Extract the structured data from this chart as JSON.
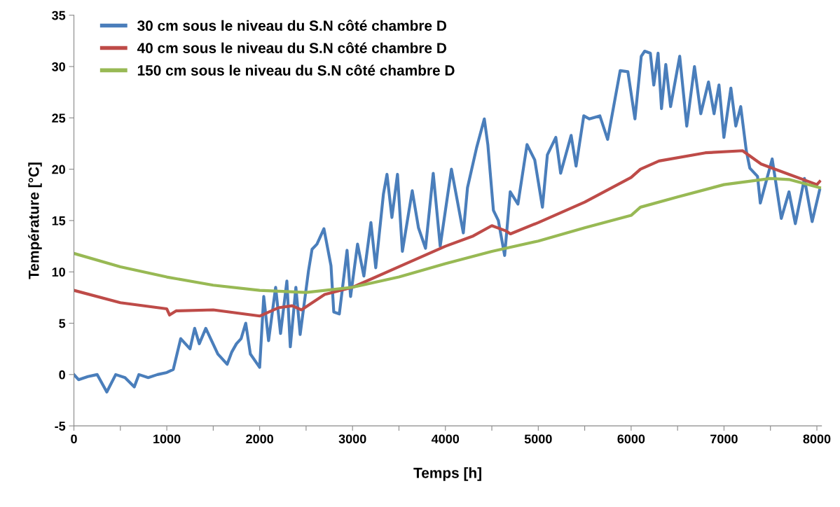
{
  "chart_data": {
    "type": "line",
    "xlabel": "Temps [h]",
    "ylabel": "Température [°C]",
    "xlim": [
      0,
      8050
    ],
    "ylim": [
      -5,
      35
    ],
    "xticks": [
      0,
      {
        "value": 500,
        "label": null
      },
      1000,
      {
        "value": 1500,
        "label": null
      },
      2000,
      {
        "value": 2500,
        "label": null
      },
      3000,
      {
        "value": 3500,
        "label": null
      },
      4000,
      {
        "value": 4500,
        "label": null
      },
      5000,
      {
        "value": 5500,
        "label": null
      },
      6000,
      {
        "value": 6500,
        "label": null
      },
      7000,
      {
        "value": 7500,
        "label": null
      },
      8000
    ],
    "yticks": [
      -5,
      0,
      5,
      10,
      15,
      20,
      25,
      30,
      35
    ],
    "grid": false,
    "legend": "top left",
    "marker": "none",
    "line_style": "solid",
    "series": [
      {
        "name": "30 cm sous le niveau du S.N côté chambre D",
        "color": "#4a7ebb",
        "x": [
          0,
          50,
          150,
          250,
          354,
          450,
          550,
          650,
          700,
          800,
          900,
          1000,
          1070,
          1150,
          1250,
          1300,
          1350,
          1420,
          1550,
          1650,
          1700,
          1750,
          1800,
          1850,
          1900,
          2000,
          2044,
          2096,
          2172,
          2225,
          2293,
          2330,
          2390,
          2436,
          2526,
          2564,
          2617,
          2692,
          2768,
          2798,
          2858,
          2941,
          2979,
          3054,
          3122,
          3198,
          3250,
          3333,
          3371,
          3424,
          3484,
          3537,
          3643,
          3710,
          3786,
          3869,
          3944,
          4065,
          4193,
          4238,
          4336,
          4419,
          4457,
          4517,
          4570,
          4638,
          4698,
          4781,
          4879,
          4962,
          5045,
          5098,
          5189,
          5241,
          5354,
          5407,
          5490,
          5551,
          5663,
          5747,
          5882,
          5965,
          6041,
          6109,
          6146,
          6207,
          6244,
          6290,
          6327,
          6373,
          6425,
          6523,
          6599,
          6682,
          6750,
          6833,
          6893,
          6946,
          6999,
          7074,
          7127,
          7180,
          7240,
          7278,
          7361,
          7391,
          7519,
          7617,
          7700,
          7768,
          7866,
          7949,
          8030
        ],
        "values": [
          0,
          -0.5,
          -0.2,
          0,
          -1.7,
          0,
          -0.3,
          -1.2,
          0,
          -0.3,
          0,
          0.2,
          0.5,
          3.5,
          2.5,
          4.5,
          3,
          4.5,
          2,
          1,
          2.2,
          3,
          3.5,
          5,
          2,
          0.7,
          7.6,
          3.3,
          8.5,
          4,
          9.1,
          2.7,
          8.5,
          3.9,
          10.1,
          12.2,
          12.7,
          14.2,
          10.6,
          6.1,
          5.9,
          12.1,
          7.6,
          12.7,
          9.6,
          14.8,
          10.4,
          17.6,
          19.5,
          15.3,
          19.5,
          12,
          17.9,
          14.3,
          12.3,
          19.6,
          12.5,
          20,
          13.8,
          18.2,
          22.1,
          24.9,
          22.4,
          16,
          15,
          11.6,
          17.8,
          16.6,
          22.4,
          20.9,
          16.3,
          21.4,
          23.1,
          19.6,
          23.3,
          20.3,
          25.2,
          24.9,
          25.2,
          22.9,
          29.6,
          29.5,
          24.9,
          31,
          31.5,
          31.3,
          28.2,
          31.3,
          25.9,
          30.2,
          26.1,
          31,
          24.2,
          30,
          25.4,
          28.5,
          25.4,
          28.2,
          23.1,
          27.9,
          24.2,
          26.1,
          21.8,
          20.1,
          19.3,
          16.7,
          21,
          15.2,
          17.8,
          14.7,
          19.1,
          14.9,
          18
        ]
      },
      {
        "name": "40 cm sous le niveau du S.N côté chambre D",
        "color": "#be4b48",
        "x": [
          0,
          500,
          1000,
          1030,
          1100,
          1500,
          2000,
          2200,
          2350,
          2450,
          2700,
          3000,
          3500,
          4000,
          4300,
          4500,
          4650,
          4700,
          5000,
          5500,
          6000,
          6100,
          6300,
          6800,
          7200,
          7400,
          7700,
          8000,
          8030
        ],
        "values": [
          8.2,
          7,
          6.4,
          5.8,
          6.2,
          6.3,
          5.7,
          6.5,
          6.7,
          6.3,
          7.8,
          8.5,
          10.5,
          12.5,
          13.5,
          14.5,
          14,
          13.7,
          14.8,
          16.8,
          19.2,
          20,
          20.8,
          21.6,
          21.8,
          20.5,
          19.5,
          18.5,
          18.8
        ]
      },
      {
        "name": "150 cm sous le niveau du S.N côté chambre D",
        "color": "#98b954",
        "x": [
          0,
          500,
          1000,
          1500,
          2000,
          2500,
          3000,
          3500,
          4000,
          4500,
          5000,
          5500,
          6000,
          6100,
          6500,
          7000,
          7500,
          7700,
          8030
        ],
        "values": [
          11.8,
          10.5,
          9.5,
          8.7,
          8.2,
          8,
          8.5,
          9.5,
          10.8,
          12,
          13,
          14.3,
          15.5,
          16.3,
          17.3,
          18.5,
          19.1,
          19,
          18.2
        ]
      }
    ]
  }
}
